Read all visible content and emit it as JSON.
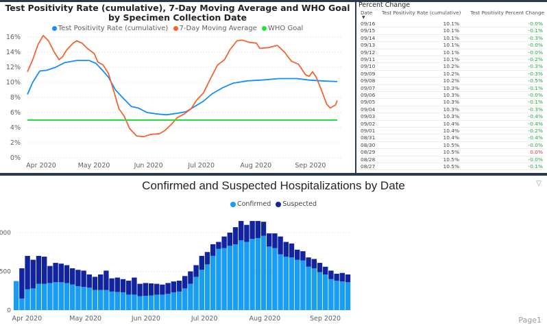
{
  "positivity_chart": {
    "title": "Test Positivity Rate (cumulative), 7-Day Moving Average and WHO Goal by Specimen Collection Date",
    "colors": {
      "cumulative": "#118dff",
      "moving_avg": "#f4622d",
      "who": "#22e03a"
    },
    "chart_data": {
      "type": "line",
      "title": "Test Positivity Rate (cumulative), 7-Day Moving Average and WHO Goal by Specimen Collection Date",
      "x_range": [
        "2020-03-25",
        "2020-09-17"
      ],
      "x_ticks": [
        "Apr 2020",
        "May 2020",
        "Jun 2020",
        "Jul 2020",
        "Aug 2020",
        "Sep 2020"
      ],
      "y_ticks": [
        "0%",
        "2%",
        "4%",
        "6%",
        "8%",
        "10%",
        "12%",
        "14%",
        "16%"
      ],
      "ylim": [
        0,
        16
      ],
      "grid": true,
      "legend": "top",
      "series": [
        {
          "name": "Test Positivity Rate (cumulative)",
          "points": [
            [
              "2020-03-25",
              8.4
            ],
            [
              "2020-03-28",
              10
            ],
            [
              "2020-04-01",
              11.5
            ],
            [
              "2020-04-05",
              11.6
            ],
            [
              "2020-04-10",
              12
            ],
            [
              "2020-04-15",
              12.6
            ],
            [
              "2020-04-22",
              12.9
            ],
            [
              "2020-04-29",
              12.9
            ],
            [
              "2020-05-03",
              12.5
            ],
            [
              "2020-05-07",
              11.5
            ],
            [
              "2020-05-10",
              10.7
            ],
            [
              "2020-05-14",
              9
            ],
            [
              "2020-05-18",
              8
            ],
            [
              "2020-05-23",
              6.8
            ],
            [
              "2020-05-27",
              6.6
            ],
            [
              "2020-06-01",
              6
            ],
            [
              "2020-06-07",
              5.8
            ],
            [
              "2020-06-12",
              5.7
            ],
            [
              "2020-06-18",
              5.9
            ],
            [
              "2020-06-23",
              6.1
            ],
            [
              "2020-06-28",
              6.8
            ],
            [
              "2020-07-03",
              7.5
            ],
            [
              "2020-07-08",
              8.5
            ],
            [
              "2020-07-14",
              9.3
            ],
            [
              "2020-07-20",
              9.9
            ],
            [
              "2020-07-28",
              10.2
            ],
            [
              "2020-08-05",
              10.3
            ],
            [
              "2020-08-15",
              10.5
            ],
            [
              "2020-08-25",
              10.5
            ],
            [
              "2020-09-01",
              10.3
            ],
            [
              "2020-09-08",
              10.2
            ],
            [
              "2020-09-17",
              10.1
            ]
          ]
        },
        {
          "name": "7-Day Moving Average",
          "points": [
            [
              "2020-03-25",
              11.4
            ],
            [
              "2020-03-28",
              13
            ],
            [
              "2020-03-31",
              15
            ],
            [
              "2020-04-03",
              16.2
            ],
            [
              "2020-04-06",
              15.5
            ],
            [
              "2020-04-09",
              14.1
            ],
            [
              "2020-04-12",
              13
            ],
            [
              "2020-04-14",
              13.4
            ],
            [
              "2020-04-16",
              14.2
            ],
            [
              "2020-04-20",
              15.2
            ],
            [
              "2020-04-22",
              15.5
            ],
            [
              "2020-04-25",
              15.2
            ],
            [
              "2020-04-28",
              14.5
            ],
            [
              "2020-05-02",
              13.8
            ],
            [
              "2020-05-04",
              12.7
            ],
            [
              "2020-05-07",
              12.3
            ],
            [
              "2020-05-10",
              11.2
            ],
            [
              "2020-05-13",
              8.9
            ],
            [
              "2020-05-16",
              6.5
            ],
            [
              "2020-05-19",
              5.5
            ],
            [
              "2020-05-22",
              3.9
            ],
            [
              "2020-05-26",
              2.9
            ],
            [
              "2020-05-30",
              2.8
            ],
            [
              "2020-06-03",
              3.1
            ],
            [
              "2020-06-08",
              3.2
            ],
            [
              "2020-06-11",
              3.6
            ],
            [
              "2020-06-15",
              4.5
            ],
            [
              "2020-06-18",
              5.3
            ],
            [
              "2020-06-22",
              5.8
            ],
            [
              "2020-06-26",
              6.5
            ],
            [
              "2020-06-29",
              7.6
            ],
            [
              "2020-07-03",
              8.6
            ],
            [
              "2020-07-07",
              10.5
            ],
            [
              "2020-07-11",
              12.3
            ],
            [
              "2020-07-15",
              13
            ],
            [
              "2020-07-18",
              14.3
            ],
            [
              "2020-07-22",
              15.5
            ],
            [
              "2020-07-25",
              15.6
            ],
            [
              "2020-07-29",
              15.3
            ],
            [
              "2020-08-02",
              15.2
            ],
            [
              "2020-08-04",
              14.5
            ],
            [
              "2020-08-09",
              14.6
            ],
            [
              "2020-08-14",
              14.9
            ],
            [
              "2020-08-18",
              14
            ],
            [
              "2020-08-22",
              12.8
            ],
            [
              "2020-08-26",
              12.4
            ],
            [
              "2020-08-30",
              11
            ],
            [
              "2020-09-01",
              10.8
            ],
            [
              "2020-09-03",
              11.4
            ],
            [
              "2020-09-05",
              10.7
            ],
            [
              "2020-09-08",
              9
            ],
            [
              "2020-09-11",
              7.1
            ],
            [
              "2020-09-13",
              6.6
            ],
            [
              "2020-09-16",
              7
            ],
            [
              "2020-09-17",
              7.6
            ]
          ]
        },
        {
          "name": "WHO Goal",
          "points": [
            [
              "2020-03-25",
              5
            ],
            [
              "2020-09-17",
              5
            ]
          ]
        }
      ]
    }
  },
  "percent_table": {
    "title": "Percent Change",
    "columns": [
      "Date",
      "Test Positivity Rate (cumulative)",
      "Test Positivity Percent Change"
    ],
    "positive_color": "#1aab40",
    "negative_color": "#e8363d",
    "rows": [
      [
        "09/16",
        "10.1%",
        "-0.0%"
      ],
      [
        "09/15",
        "10.1%",
        "-0.1%"
      ],
      [
        "09/14",
        "10.1%",
        "-0.3%"
      ],
      [
        "09/13",
        "10.1%",
        "-0.0%"
      ],
      [
        "09/12",
        "10.1%",
        "-0.0%"
      ],
      [
        "09/11",
        "10.1%",
        "-0.2%"
      ],
      [
        "09/10",
        "10.2%",
        "-0.3%"
      ],
      [
        "09/09",
        "10.2%",
        "-0.3%"
      ],
      [
        "09/08",
        "10.2%",
        "-0.5%"
      ],
      [
        "09/07",
        "10.3%",
        "-0.1%"
      ],
      [
        "09/06",
        "10.3%",
        "-0.0%"
      ],
      [
        "09/05",
        "10.3%",
        "-0.1%"
      ],
      [
        "09/04",
        "10.3%",
        "-0.3%"
      ],
      [
        "09/03",
        "10.3%",
        "-0.4%"
      ],
      [
        "09/02",
        "10.4%",
        "-0.4%"
      ],
      [
        "09/01",
        "10.4%",
        "-0.2%"
      ],
      [
        "08/31",
        "10.4%",
        "-0.4%"
      ],
      [
        "08/30",
        "10.5%",
        "-0.0%"
      ],
      [
        "08/29",
        "10.5%",
        "0.0%"
      ],
      [
        "08/28",
        "10.5%",
        "-0.0%"
      ],
      [
        "08/27",
        "10.5%",
        "-0.1%"
      ]
    ]
  },
  "hospital_chart": {
    "title": "Confirmed and Suspected Hospitalizations by Date",
    "filter_icon": "funnel-icon",
    "page_label": "Page1",
    "colors": {
      "confirmed": "#199cf2",
      "suspected": "#12239e"
    },
    "chart_data": {
      "type": "bar",
      "stacked": true,
      "title": "Confirmed and Suspected Hospitalizations by Date",
      "x_range": [
        "2020-03-28",
        "2020-09-17"
      ],
      "x_ticks": [
        "Apr 2020",
        "May 2020",
        "Jun 2020",
        "Jul 2020",
        "Aug 2020",
        "Sep 2020"
      ],
      "y_ticks": [
        "0",
        "500",
        "1000"
      ],
      "ylim": [
        0,
        1200
      ],
      "legend": "top",
      "series": [
        {
          "name": "Confirmed",
          "values": [
            375,
            150,
            270,
            280,
            340,
            340,
            350,
            360,
            360,
            350,
            330,
            310,
            300,
            290,
            260,
            260,
            260,
            240,
            235,
            230,
            200,
            200,
            180,
            185,
            190,
            200,
            200,
            210,
            230,
            240,
            280,
            340,
            430,
            520,
            590,
            700,
            790,
            800,
            830,
            850,
            900,
            880,
            920,
            930,
            960,
            820,
            800,
            720,
            690,
            680,
            650,
            640,
            560,
            540,
            490,
            460,
            400,
            380,
            370,
            360
          ]
        },
        {
          "name": "Suspected",
          "values": [
            0,
            390,
            430,
            370,
            360,
            350,
            220,
            250,
            240,
            230,
            210,
            210,
            210,
            170,
            170,
            200,
            250,
            170,
            185,
            170,
            180,
            220,
            160,
            165,
            155,
            140,
            130,
            140,
            140,
            140,
            160,
            160,
            150,
            180,
            160,
            150,
            90,
            150,
            170,
            220,
            250,
            220,
            230,
            220,
            180,
            170,
            190,
            230,
            190,
            180,
            130,
            120,
            120,
            120,
            120,
            100,
            110,
            90,
            110,
            100
          ]
        }
      ]
    }
  }
}
